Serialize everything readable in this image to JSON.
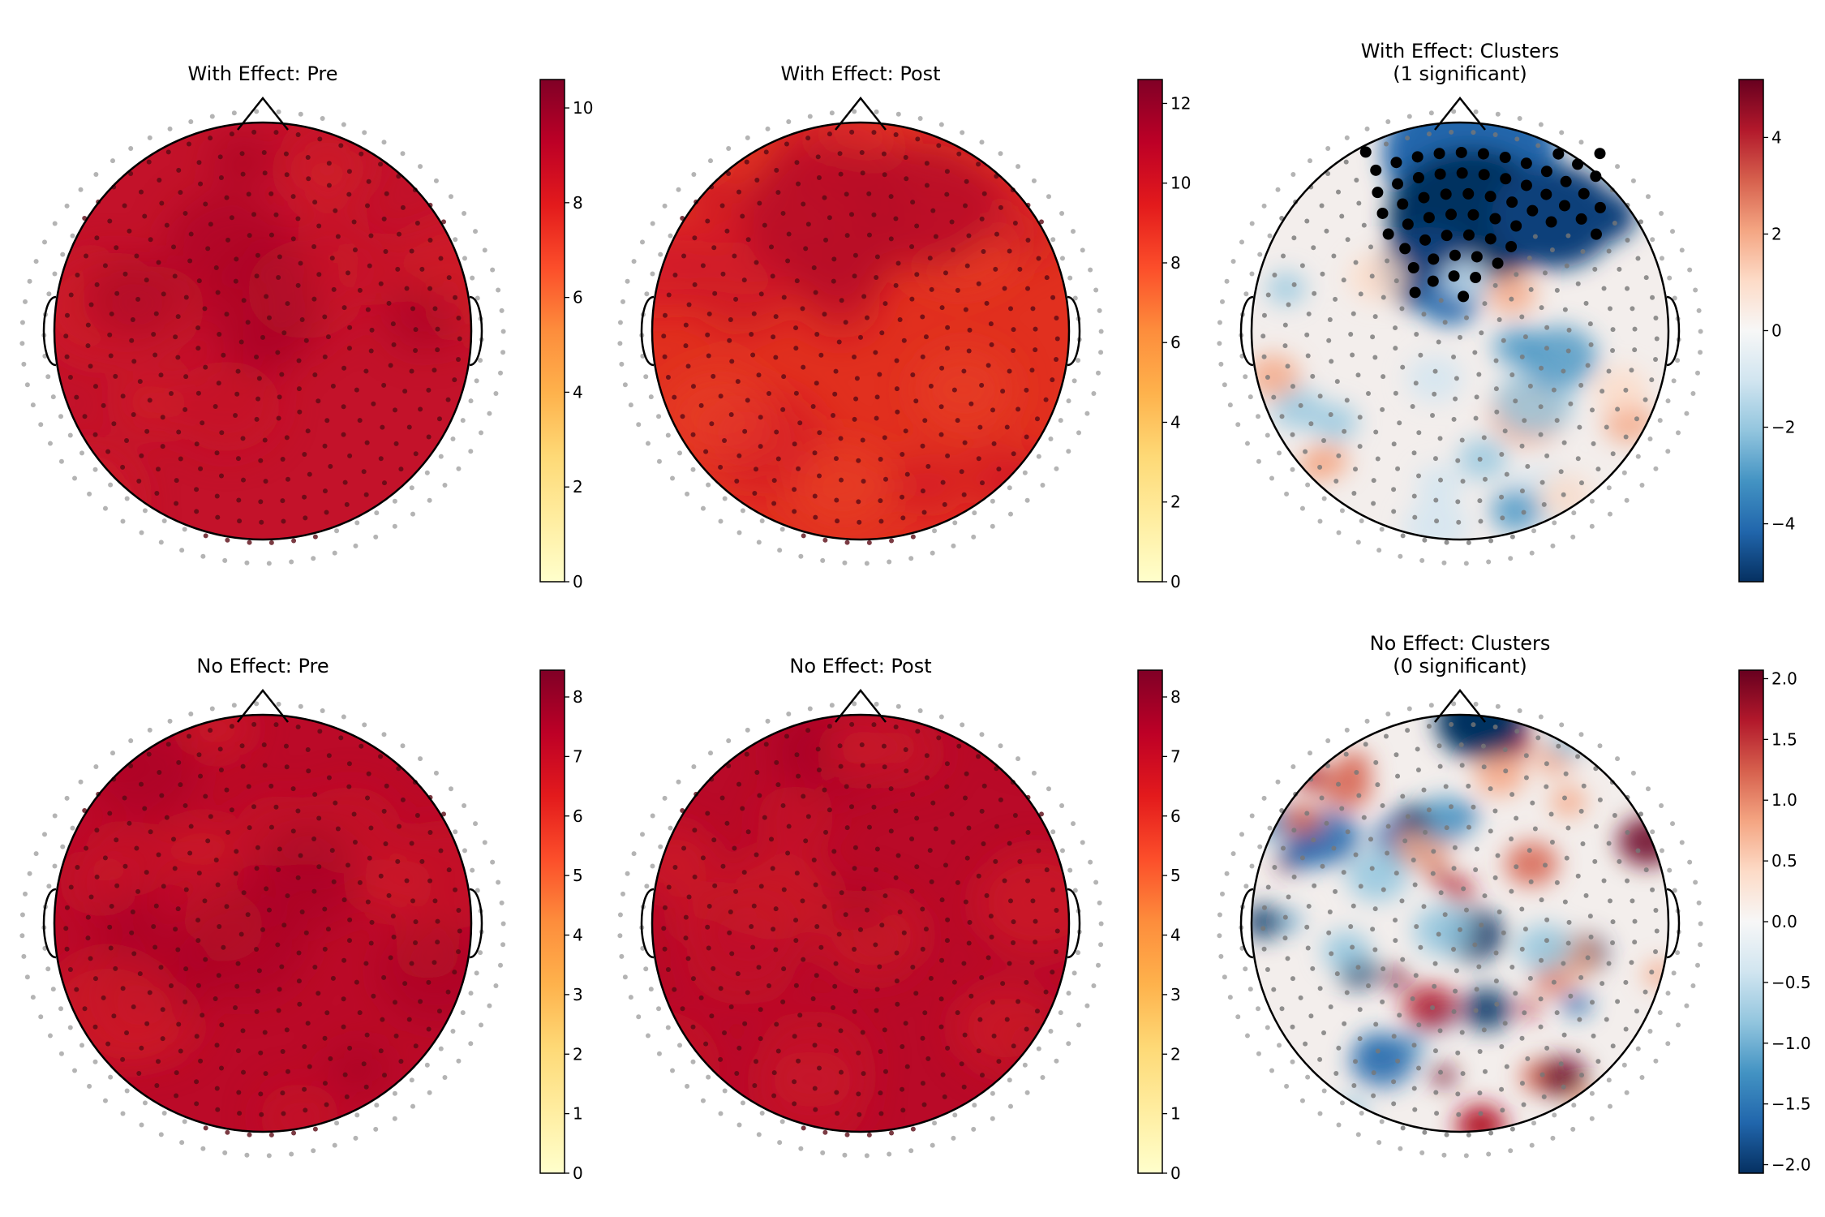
{
  "chart_data": [
    {
      "type": "heatmap",
      "subtype": "topomap",
      "title": [
        "With Effect: Pre"
      ],
      "colormap": "YlOrRd",
      "vmin": 0,
      "vmax": 10.6,
      "ticks": [
        0,
        2,
        4,
        6,
        8,
        10
      ],
      "tick_labels": [
        "0",
        "2",
        "4",
        "6",
        "8",
        "10"
      ],
      "base_color": "#c3122a",
      "sensor_style": "dark"
    },
    {
      "type": "heatmap",
      "subtype": "topomap",
      "title": [
        "With Effect: Post"
      ],
      "colormap": "YlOrRd",
      "vmin": 0,
      "vmax": 12.6,
      "ticks": [
        0,
        2,
        4,
        6,
        8,
        10,
        12
      ],
      "tick_labels": [
        "0",
        "2",
        "4",
        "6",
        "8",
        "10",
        "12"
      ],
      "base_color": "#e1301f",
      "sensor_style": "dark"
    },
    {
      "type": "heatmap",
      "subtype": "topomap",
      "title": [
        "With Effect: Clusters",
        "(1 significant)"
      ],
      "colormap": "RdBu_r",
      "vmin": -5.2,
      "vmax": 5.2,
      "ticks": [
        -4,
        -2,
        0,
        2,
        4
      ],
      "tick_labels": [
        "−4",
        "−2",
        "0",
        "2",
        "4"
      ],
      "base_color": "#f3eeec",
      "sensor_style": "gray",
      "significant_clusters": 1
    },
    {
      "type": "heatmap",
      "subtype": "topomap",
      "title": [
        "No Effect: Pre"
      ],
      "colormap": "YlOrRd",
      "vmin": 0,
      "vmax": 8.45,
      "ticks": [
        0,
        1,
        2,
        3,
        4,
        5,
        6,
        7,
        8
      ],
      "tick_labels": [
        "0",
        "1",
        "2",
        "3",
        "4",
        "5",
        "6",
        "7",
        "8"
      ],
      "base_color": "#bb0a28",
      "sensor_style": "dark"
    },
    {
      "type": "heatmap",
      "subtype": "topomap",
      "title": [
        "No Effect: Post"
      ],
      "colormap": "YlOrRd",
      "vmin": 0,
      "vmax": 8.45,
      "ticks": [
        0,
        1,
        2,
        3,
        4,
        5,
        6,
        7,
        8
      ],
      "tick_labels": [
        "0",
        "1",
        "2",
        "3",
        "4",
        "5",
        "6",
        "7",
        "8"
      ],
      "base_color": "#b90a28",
      "sensor_style": "dark"
    },
    {
      "type": "heatmap",
      "subtype": "topomap",
      "title": [
        "No Effect: Clusters",
        "(0 significant)"
      ],
      "colormap": "RdBu_r",
      "vmin": -2.07,
      "vmax": 2.07,
      "ticks": [
        -2.0,
        -1.5,
        -1.0,
        -0.5,
        0.0,
        0.5,
        1.0,
        1.5,
        2.0
      ],
      "tick_labels": [
        "−2.0",
        "−1.5",
        "−1.0",
        "−0.5",
        "0.0",
        "0.5",
        "1.0",
        "1.5",
        "2.0"
      ],
      "base_color": "#f3eeec",
      "sensor_style": "gray",
      "significant_clusters": 0
    }
  ],
  "colormaps": {
    "YlOrRd": [
      "#ffffcc",
      "#ffeda0",
      "#fed976",
      "#feb24c",
      "#fd8d3c",
      "#fc4e2a",
      "#e31a1c",
      "#bd0026",
      "#800026"
    ],
    "RdBu_r": [
      "#053061",
      "#2166ac",
      "#4393c3",
      "#92c5de",
      "#d1e5f0",
      "#f7f7f7",
      "#fddbc7",
      "#f4a582",
      "#d6604d",
      "#b2182b",
      "#67001f"
    ]
  }
}
